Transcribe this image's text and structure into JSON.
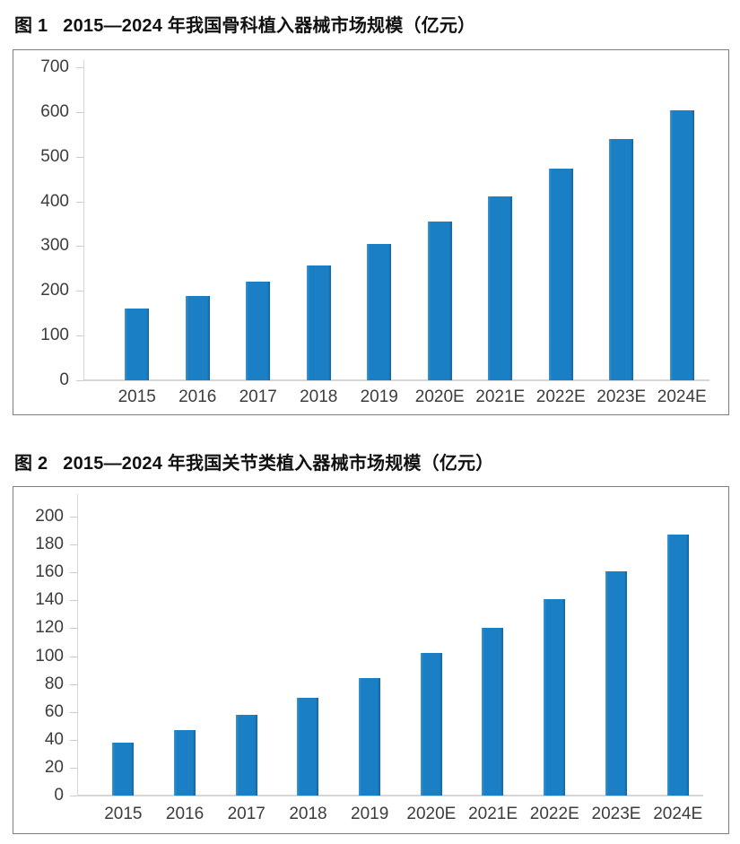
{
  "page": {
    "background": "#ffffff"
  },
  "figures": [
    {
      "label": "图 1",
      "title": "2015—2024 年我国骨科植入器械市场规模（亿元）"
    },
    {
      "label": "图 2",
      "title": "2015—2024 年我国关节类植入器械市场规模（亿元）"
    }
  ],
  "chart_data": [
    {
      "type": "bar",
      "title": "图 1 2015—2024 年我国骨科植入器械市场规模（亿元）",
      "unit": "亿元",
      "categories": [
        "2015",
        "2016",
        "2017",
        "2018",
        "2019",
        "2020E",
        "2021E",
        "2022E",
        "2023E",
        "2024E"
      ],
      "values": [
        160,
        188,
        221,
        257,
        304,
        356,
        411,
        473,
        539,
        603
      ],
      "xlabel": "",
      "ylabel": "",
      "ylim": [
        0,
        700
      ],
      "ytick_step": 100,
      "ytick_labels": [
        "700",
        "600",
        "500",
        "400",
        "300",
        "200",
        "100",
        "0"
      ],
      "grid": false,
      "legend": null,
      "bar_color": "#1b7fc5",
      "axis_color": "#d6d6d6",
      "label_color": "#3c3c3c"
    },
    {
      "type": "bar",
      "title": "图 2 2015—2024 年我国关节类植入器械市场规模（亿元）",
      "unit": "亿元",
      "categories": [
        "2015",
        "2016",
        "2017",
        "2018",
        "2019",
        "2020E",
        "2021E",
        "2022E",
        "2023E",
        "2024E"
      ],
      "values": [
        38,
        47,
        58,
        70,
        84,
        102,
        120,
        141,
        161,
        187
      ],
      "xlabel": "",
      "ylabel": "",
      "ylim": [
        0,
        200
      ],
      "ytick_step": 20,
      "ytick_labels": [
        "200",
        "180",
        "160",
        "140",
        "120",
        "100",
        "80",
        "60",
        "40",
        "20",
        "0"
      ],
      "grid": false,
      "legend": null,
      "bar_color": "#1b7fc5",
      "axis_color": "#d6d6d6",
      "label_color": "#3c3c3c"
    }
  ]
}
